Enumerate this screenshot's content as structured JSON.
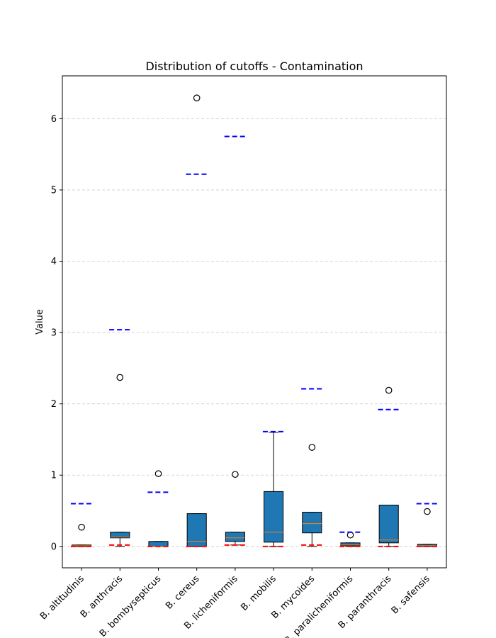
{
  "chart_data": {
    "type": "box",
    "title": "Distribution of cutoffs - Contamination",
    "xlabel": "",
    "ylabel": "Value",
    "ylim": [
      -0.3,
      6.6
    ],
    "yticks": [
      0,
      1,
      2,
      3,
      4,
      5,
      6
    ],
    "grid": "y",
    "categories": [
      "B. altitudinis",
      "B. anthracis",
      "B. bombysepticus",
      "B. cereus",
      "B. licheniformis",
      "B. mobilis",
      "B. mycoides",
      "B. paralicheniformis",
      "B. paranthracis",
      "B. safensis"
    ],
    "boxes": [
      {
        "whislo": 0.0,
        "q1": 0.0,
        "med": 0.01,
        "q3": 0.02,
        "whishi": 0.02,
        "fliers": [
          0.27
        ]
      },
      {
        "whislo": 0.0,
        "q1": 0.12,
        "med": 0.13,
        "q3": 0.2,
        "whishi": 0.2,
        "fliers": [
          2.37
        ]
      },
      {
        "whislo": 0.0,
        "q1": 0.0,
        "med": 0.0,
        "q3": 0.07,
        "whishi": 0.07,
        "fliers": [
          1.02
        ]
      },
      {
        "whislo": 0.0,
        "q1": 0.0,
        "med": 0.07,
        "q3": 0.46,
        "whishi": 0.46,
        "fliers": [
          6.29
        ]
      },
      {
        "whislo": 0.02,
        "q1": 0.07,
        "med": 0.12,
        "q3": 0.2,
        "whishi": 0.2,
        "fliers": [
          1.01
        ]
      },
      {
        "whislo": 0.0,
        "q1": 0.06,
        "med": 0.2,
        "q3": 0.77,
        "whishi": 1.6,
        "fliers": []
      },
      {
        "whislo": 0.0,
        "q1": 0.19,
        "med": 0.32,
        "q3": 0.48,
        "whishi": 0.48,
        "fliers": [
          1.39
        ]
      },
      {
        "whislo": 0.0,
        "q1": 0.01,
        "med": 0.02,
        "q3": 0.05,
        "whishi": 0.05,
        "fliers": [
          0.16
        ]
      },
      {
        "whislo": 0.0,
        "q1": 0.05,
        "med": 0.09,
        "q3": 0.58,
        "whishi": 0.58,
        "fliers": [
          2.19
        ]
      },
      {
        "whislo": 0.0,
        "q1": 0.0,
        "med": 0.01,
        "q3": 0.03,
        "whishi": 0.03,
        "fliers": [
          0.49
        ]
      }
    ],
    "upper_cutoffs": [
      0.6,
      3.04,
      0.76,
      5.22,
      5.75,
      1.61,
      2.21,
      0.2,
      1.92,
      0.6
    ],
    "lower_cutoffs": [
      0.0,
      0.02,
      0.0,
      0.0,
      0.02,
      0.0,
      0.02,
      0.0,
      0.0,
      0.0
    ],
    "colors": {
      "box_fill": "#1f77b4",
      "median": "#ff7f0e",
      "upper_cutoff": "#0000ff",
      "lower_cutoff": "#ff0000",
      "grid": "#cccccc",
      "axis": "#000000"
    }
  }
}
